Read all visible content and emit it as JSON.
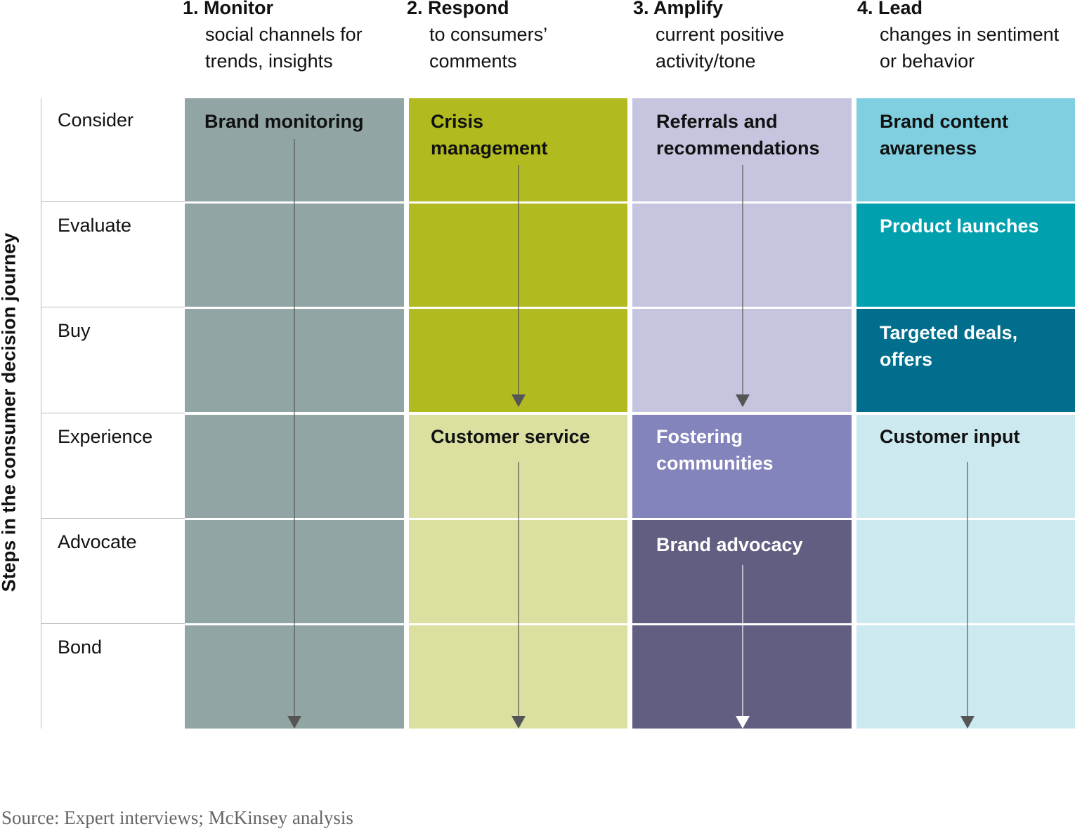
{
  "headers": [
    {
      "num": "1. Monitor",
      "desc": "social channels for\ntrends, insights"
    },
    {
      "num": "2. Respond",
      "desc": "to consumers’\ncomments"
    },
    {
      "num": "3. Amplify",
      "desc": "current positive\nactivity/tone"
    },
    {
      "num": "4. Lead",
      "desc": "changes in sentiment\nor behavior"
    }
  ],
  "axis_label": "Steps in the consumer decision journey",
  "rows": [
    "Consider",
    "Evaluate",
    "Buy",
    "Experience",
    "Advocate",
    "Bond"
  ],
  "blocks": {
    "brand_monitoring": "Brand monitoring",
    "crisis_management": "Crisis\nmanagement",
    "customer_service": "Customer service",
    "referrals": "Referrals and\nrecommendations",
    "fostering": "Fostering\ncommunities",
    "brand_advocacy": "Brand advocacy",
    "brand_content": "Brand content\nawareness",
    "product_launches": "Product launches",
    "targeted_deals": "Targeted deals,\noffers",
    "customer_input": "Customer input"
  },
  "colors": {
    "monitor": "#91A6A4",
    "crisis": "#B1BA1F",
    "service": "#DBDFA0",
    "referrals": "#C5C5E0",
    "fostering": "#8484BC",
    "advocacy": "#615E82",
    "content": "#7FCFE0",
    "launches": "#00A0AF",
    "deals": "#006E8C",
    "input": "#CCE9F0"
  },
  "source": "Source: Expert interviews; McKinsey analysis"
}
